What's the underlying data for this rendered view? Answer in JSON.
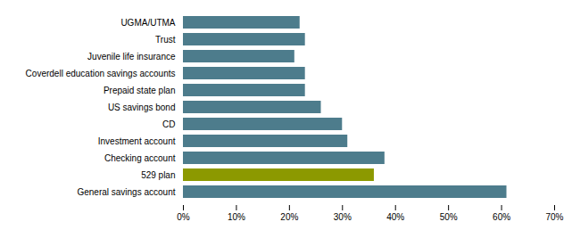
{
  "chart_data": {
    "type": "bar",
    "orientation": "horizontal",
    "categories": [
      "General savings account",
      "529 plan",
      "Checking account",
      "Investment account",
      "CD",
      "US savings bond",
      "Prepaid state plan",
      "Coverdell education savings accounts",
      "Juvenile life insurance",
      "Trust",
      "UGMA/UTMA"
    ],
    "values": [
      0.61,
      0.36,
      0.38,
      0.31,
      0.3,
      0.26,
      0.23,
      0.23,
      0.21,
      0.23,
      0.22
    ],
    "colors": [
      "#4d7c8c",
      "#8c9900",
      "#4d7c8c",
      "#4d7c8c",
      "#4d7c8c",
      "#4d7c8c",
      "#4d7c8c",
      "#4d7c8c",
      "#4d7c8c",
      "#4d7c8c",
      "#4d7c8c"
    ],
    "xlim": [
      0,
      0.7
    ],
    "xticks": [
      {
        "value": 0.0,
        "label": "0%"
      },
      {
        "value": 0.1,
        "label": "10%"
      },
      {
        "value": 0.2,
        "label": "20%"
      },
      {
        "value": 0.3,
        "label": "30%"
      },
      {
        "value": 0.4,
        "label": "40%"
      },
      {
        "value": 0.5,
        "label": "50%"
      },
      {
        "value": 0.6,
        "label": "60%"
      },
      {
        "value": 0.7,
        "label": "70%"
      }
    ],
    "grid": false
  }
}
